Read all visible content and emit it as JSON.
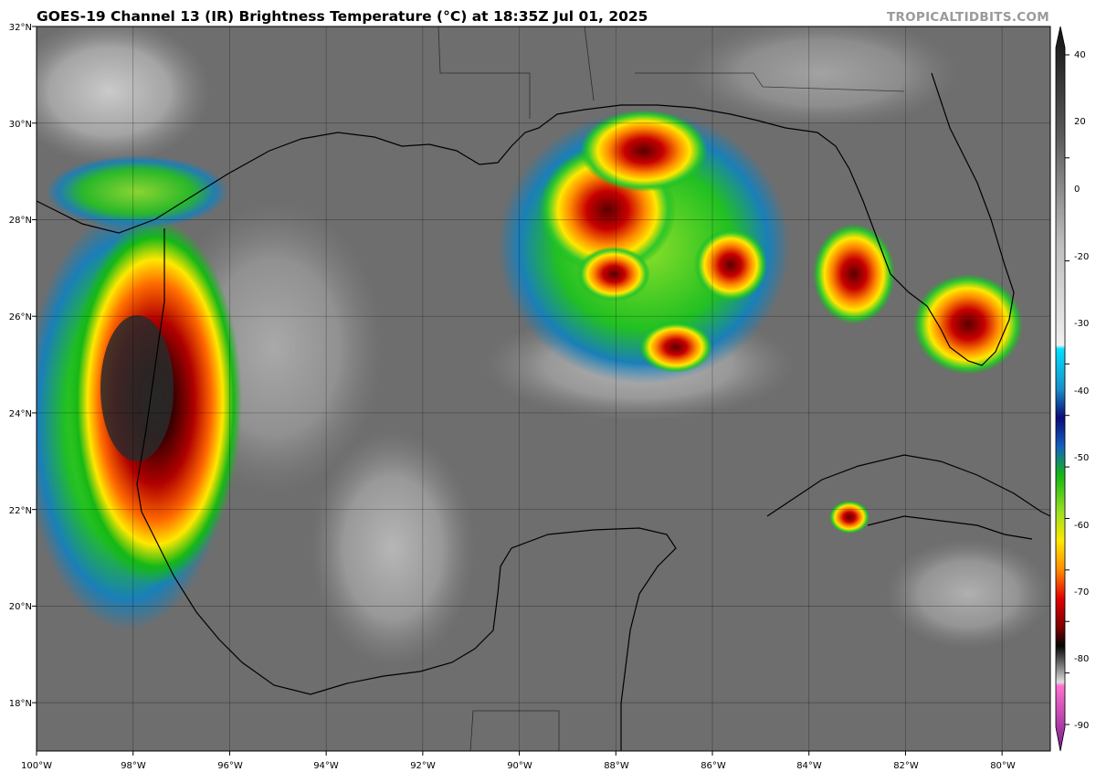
{
  "header": {
    "title": "GOES-19 Channel 13 (IR) Brightness Temperature (°C) at 18:35Z Jul 01, 2025",
    "brand": "TROPICALTIDBITS.COM"
  },
  "map": {
    "region": "Gulf of Mexico",
    "lon_range": [
      -100,
      -79
    ],
    "lat_range": [
      17,
      32
    ],
    "lon_ticks": [
      "100°W",
      "98°W",
      "96°W",
      "94°W",
      "92°W",
      "90°W",
      "88°W",
      "86°W",
      "84°W",
      "82°W",
      "80°W"
    ],
    "lat_ticks": [
      "32°N",
      "30°N",
      "28°N",
      "26°N",
      "24°N",
      "22°N",
      "20°N",
      "18°N"
    ],
    "background_gray": "#6e6e6e",
    "grid": true
  },
  "colorbar": {
    "ticks": [
      "40",
      "20",
      "0",
      "-20",
      "-30",
      "-40",
      "-50",
      "-60",
      "-70",
      "-80",
      "-90"
    ],
    "range": [
      -90,
      40
    ],
    "colors": {
      "warm_dark": "#111111",
      "gray_mid": "#8a8a8a",
      "light": "#eeeeee",
      "cyan": "#00d7ff",
      "navy": "#0b0b78",
      "green": "#15b815",
      "yellow": "#ffe800",
      "orange": "#ff8c00",
      "red": "#c80000",
      "darkred": "#3c0000",
      "magenta": "#ff70d0",
      "purple": "#7a1a8a"
    }
  },
  "chart_data": {
    "type": "heatmap",
    "title": "GOES-19 Channel 13 (IR) Brightness Temperature (°C) at 18:35Z Jul 01, 2025",
    "x_range": [
      -100,
      -79
    ],
    "y_range": [
      17,
      32
    ],
    "value_range": [
      -90,
      40
    ],
    "units": "°C",
    "features": [
      {
        "lon": -97.6,
        "lat": 24.2,
        "min_temp_approx": -75
      },
      {
        "lon": -88.2,
        "lat": 28.3,
        "min_temp_approx": -68
      },
      {
        "lon": -87.7,
        "lat": 29.6,
        "min_temp_approx": -65
      },
      {
        "lon": -85.5,
        "lat": 26.8,
        "min_temp_approx": -62
      },
      {
        "lon": -82.8,
        "lat": 26.9,
        "min_temp_approx": -60
      },
      {
        "lon": -80.8,
        "lat": 25.7,
        "min_temp_approx": -58
      },
      {
        "lon": -83.1,
        "lat": 21.8,
        "min_temp_approx": -63
      }
    ]
  }
}
